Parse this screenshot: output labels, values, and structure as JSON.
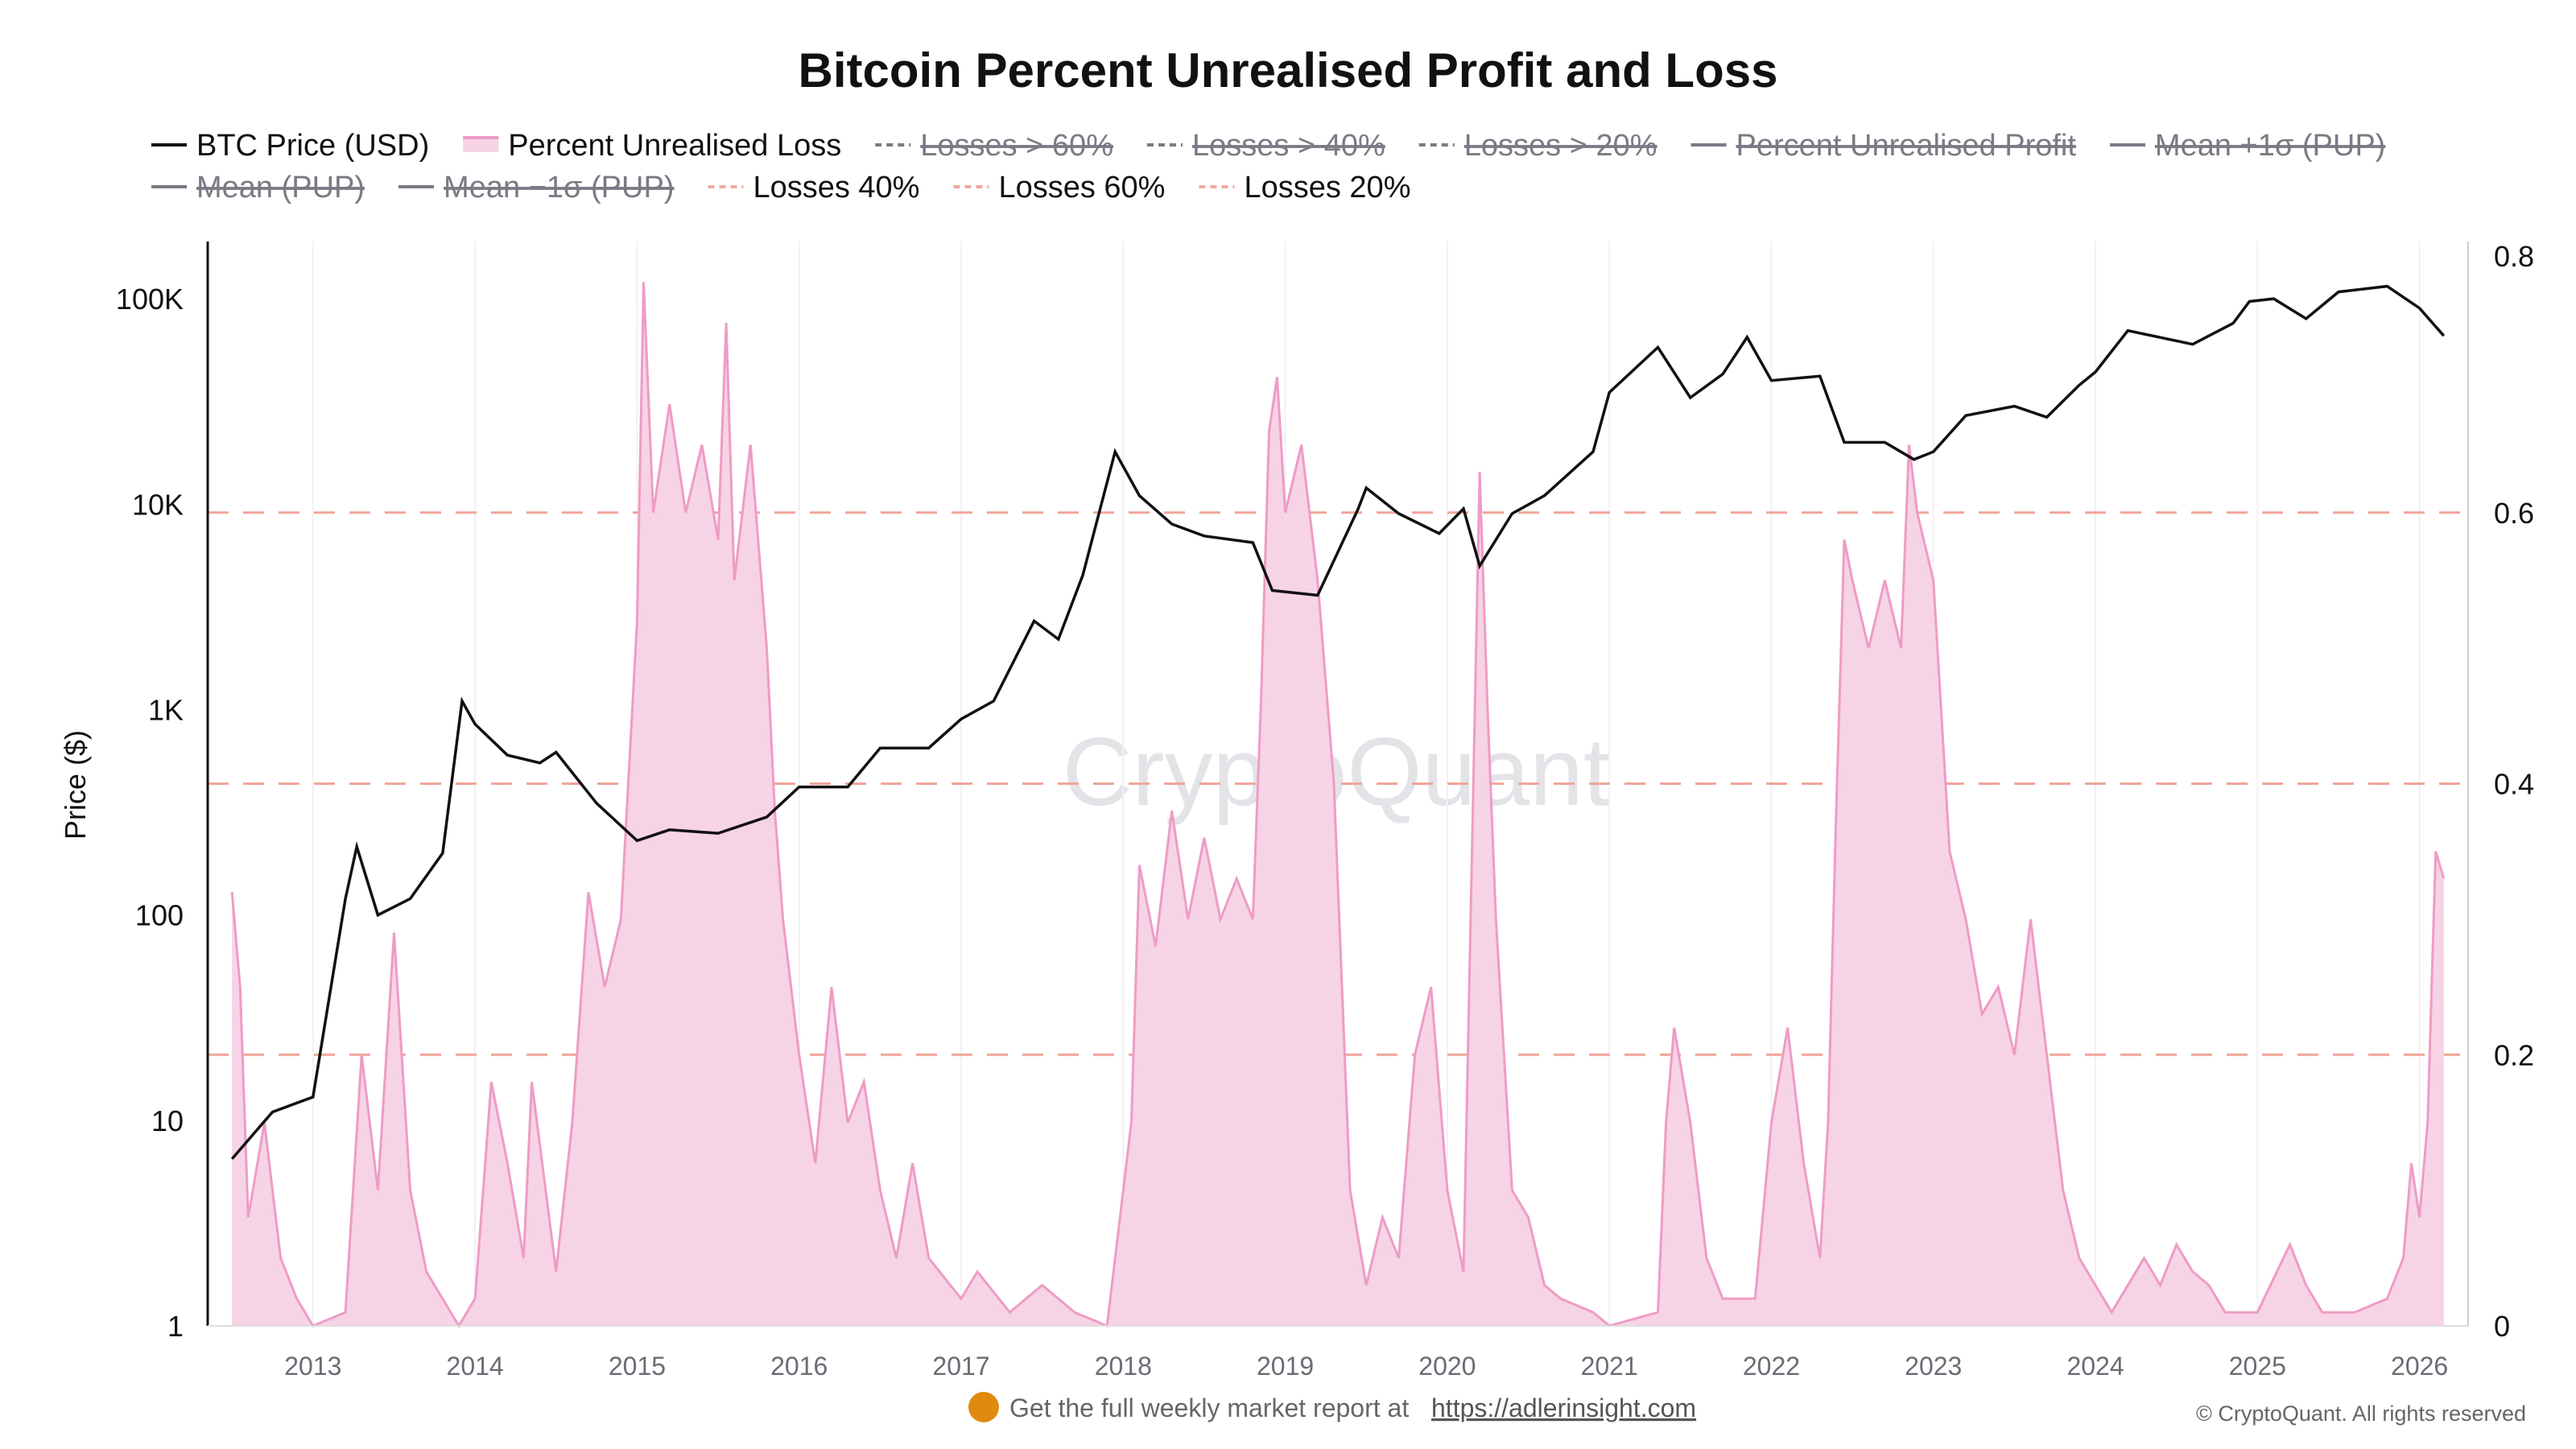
{
  "chart_data": {
    "type": "line",
    "title": "Bitcoin Percent Unrealised Profit and Loss",
    "ylabel": "Price ($)",
    "y_scale": "log",
    "ylim": [
      1,
      190000
    ],
    "y_ticks": [
      {
        "v": 1,
        "label": "1"
      },
      {
        "v": 10,
        "label": "10"
      },
      {
        "v": 100,
        "label": "100"
      },
      {
        "v": 1000,
        "label": "1K"
      },
      {
        "v": 10000,
        "label": "10K"
      },
      {
        "v": 100000,
        "label": "100K"
      }
    ],
    "y2lim": [
      0,
      0.8
    ],
    "y2_ticks": [
      {
        "v": 0,
        "label": "0"
      },
      {
        "v": 0.2,
        "label": "0.2"
      },
      {
        "v": 0.4,
        "label": "0.4"
      },
      {
        "v": 0.6,
        "label": "0.6"
      },
      {
        "v": 0.8,
        "label": "0.8"
      }
    ],
    "xlim": [
      2012.35,
      2026.3
    ],
    "x_ticks": [
      "2013",
      "2014",
      "2015",
      "2016",
      "2017",
      "2018",
      "2019",
      "2020",
      "2021",
      "2022",
      "2023",
      "2024",
      "2025",
      "2026"
    ],
    "grid": true,
    "legend_placement": "top",
    "legend": [
      {
        "label": "BTC Price (USD)",
        "style": "line",
        "color": "#111111",
        "hidden": false
      },
      {
        "label": "Percent Unrealised Loss",
        "style": "area",
        "color": "#f0a0c8",
        "hidden": false
      },
      {
        "label": "Losses > 60%",
        "style": "dash",
        "color": "#7a7a85",
        "hidden": true
      },
      {
        "label": "Losses > 40%",
        "style": "dash",
        "color": "#7a7a85",
        "hidden": true
      },
      {
        "label": "Losses > 20%",
        "style": "dash",
        "color": "#7a7a85",
        "hidden": true
      },
      {
        "label": "Percent Unrealised Profit",
        "style": "line",
        "color": "#7a7a85",
        "hidden": true
      },
      {
        "label": "Mean +1σ (PUP)",
        "style": "line",
        "color": "#7a7a85",
        "hidden": true
      },
      {
        "label": "Mean (PUP)",
        "style": "line",
        "color": "#7a7a85",
        "hidden": true
      },
      {
        "label": "Mean −1σ (PUP)",
        "style": "line",
        "color": "#7a7a85",
        "hidden": true
      },
      {
        "label": "Losses 40%",
        "style": "dash",
        "color": "#f0aaa0",
        "hidden": false
      },
      {
        "label": "Losses 60%",
        "style": "dash",
        "color": "#f0aaa0",
        "hidden": false
      },
      {
        "label": "Losses 20%",
        "style": "dash",
        "color": "#f0aaa0",
        "hidden": false
      }
    ],
    "threshold_lines": [
      0.2,
      0.4,
      0.6
    ],
    "colors": {
      "price": "#111111",
      "loss_fill": "#f7d3e6",
      "loss_line": "#ee9cc6",
      "threshold": "#f0a59a"
    },
    "series": [
      {
        "name": "BTC Price (USD)",
        "axis": "left",
        "points": [
          [
            2012.5,
            6.5
          ],
          [
            2012.75,
            11
          ],
          [
            2013.0,
            13
          ],
          [
            2013.2,
            120
          ],
          [
            2013.27,
            215
          ],
          [
            2013.4,
            100
          ],
          [
            2013.6,
            120
          ],
          [
            2013.8,
            200
          ],
          [
            2013.92,
            1100
          ],
          [
            2014.0,
            850
          ],
          [
            2014.2,
            600
          ],
          [
            2014.4,
            550
          ],
          [
            2014.5,
            620
          ],
          [
            2014.75,
            350
          ],
          [
            2015.0,
            230
          ],
          [
            2015.2,
            260
          ],
          [
            2015.5,
            250
          ],
          [
            2015.8,
            300
          ],
          [
            2016.0,
            420
          ],
          [
            2016.3,
            420
          ],
          [
            2016.5,
            650
          ],
          [
            2016.8,
            650
          ],
          [
            2017.0,
            900
          ],
          [
            2017.2,
            1100
          ],
          [
            2017.45,
            2700
          ],
          [
            2017.6,
            2200
          ],
          [
            2017.75,
            4500
          ],
          [
            2017.95,
            18000
          ],
          [
            2018.1,
            11000
          ],
          [
            2018.3,
            8000
          ],
          [
            2018.5,
            7000
          ],
          [
            2018.8,
            6500
          ],
          [
            2018.92,
            3800
          ],
          [
            2019.2,
            3600
          ],
          [
            2019.45,
            9500
          ],
          [
            2019.5,
            12000
          ],
          [
            2019.7,
            9000
          ],
          [
            2019.95,
            7200
          ],
          [
            2020.1,
            9500
          ],
          [
            2020.2,
            5000
          ],
          [
            2020.4,
            9000
          ],
          [
            2020.6,
            11000
          ],
          [
            2020.9,
            18000
          ],
          [
            2021.0,
            35000
          ],
          [
            2021.3,
            58000
          ],
          [
            2021.5,
            33000
          ],
          [
            2021.7,
            43000
          ],
          [
            2021.85,
            65000
          ],
          [
            2022.0,
            40000
          ],
          [
            2022.3,
            42000
          ],
          [
            2022.45,
            20000
          ],
          [
            2022.7,
            20000
          ],
          [
            2022.88,
            16500
          ],
          [
            2023.0,
            18000
          ],
          [
            2023.2,
            27000
          ],
          [
            2023.5,
            30000
          ],
          [
            2023.7,
            26500
          ],
          [
            2023.9,
            38000
          ],
          [
            2024.0,
            44000
          ],
          [
            2024.2,
            70000
          ],
          [
            2024.6,
            60000
          ],
          [
            2024.85,
            76000
          ],
          [
            2024.95,
            97000
          ],
          [
            2025.1,
            100000
          ],
          [
            2025.3,
            80000
          ],
          [
            2025.5,
            108000
          ],
          [
            2025.8,
            115000
          ],
          [
            2026.0,
            90000
          ],
          [
            2026.15,
            66000
          ]
        ]
      },
      {
        "name": "Percent Unrealised Loss",
        "axis": "right",
        "points": [
          [
            2012.5,
            0.32
          ],
          [
            2012.55,
            0.25
          ],
          [
            2012.6,
            0.08
          ],
          [
            2012.7,
            0.15
          ],
          [
            2012.8,
            0.05
          ],
          [
            2012.9,
            0.02
          ],
          [
            2013.0,
            0
          ],
          [
            2013.2,
            0.01
          ],
          [
            2013.3,
            0.2
          ],
          [
            2013.4,
            0.1
          ],
          [
            2013.5,
            0.29
          ],
          [
            2013.6,
            0.1
          ],
          [
            2013.7,
            0.04
          ],
          [
            2013.9,
            0
          ],
          [
            2014.0,
            0.02
          ],
          [
            2014.1,
            0.18
          ],
          [
            2014.2,
            0.12
          ],
          [
            2014.3,
            0.05
          ],
          [
            2014.35,
            0.18
          ],
          [
            2014.5,
            0.04
          ],
          [
            2014.6,
            0.15
          ],
          [
            2014.7,
            0.32
          ],
          [
            2014.8,
            0.25
          ],
          [
            2014.9,
            0.3
          ],
          [
            2015.0,
            0.52
          ],
          [
            2015.04,
            0.77
          ],
          [
            2015.1,
            0.6
          ],
          [
            2015.2,
            0.68
          ],
          [
            2015.3,
            0.6
          ],
          [
            2015.4,
            0.65
          ],
          [
            2015.5,
            0.58
          ],
          [
            2015.55,
            0.74
          ],
          [
            2015.6,
            0.55
          ],
          [
            2015.7,
            0.65
          ],
          [
            2015.8,
            0.5
          ],
          [
            2015.85,
            0.38
          ],
          [
            2015.9,
            0.3
          ],
          [
            2016.0,
            0.2
          ],
          [
            2016.1,
            0.12
          ],
          [
            2016.2,
            0.25
          ],
          [
            2016.3,
            0.15
          ],
          [
            2016.4,
            0.18
          ],
          [
            2016.5,
            0.1
          ],
          [
            2016.6,
            0.05
          ],
          [
            2016.7,
            0.12
          ],
          [
            2016.8,
            0.05
          ],
          [
            2017.0,
            0.02
          ],
          [
            2017.1,
            0.04
          ],
          [
            2017.3,
            0.01
          ],
          [
            2017.5,
            0.03
          ],
          [
            2017.7,
            0.01
          ],
          [
            2017.9,
            0
          ],
          [
            2018.05,
            0.15
          ],
          [
            2018.1,
            0.34
          ],
          [
            2018.2,
            0.28
          ],
          [
            2018.3,
            0.38
          ],
          [
            2018.4,
            0.3
          ],
          [
            2018.5,
            0.36
          ],
          [
            2018.6,
            0.3
          ],
          [
            2018.7,
            0.33
          ],
          [
            2018.8,
            0.3
          ],
          [
            2018.85,
            0.46
          ],
          [
            2018.9,
            0.66
          ],
          [
            2018.95,
            0.7
          ],
          [
            2019.0,
            0.6
          ],
          [
            2019.1,
            0.65
          ],
          [
            2019.2,
            0.55
          ],
          [
            2019.3,
            0.4
          ],
          [
            2019.4,
            0.1
          ],
          [
            2019.5,
            0.03
          ],
          [
            2019.6,
            0.08
          ],
          [
            2019.7,
            0.05
          ],
          [
            2019.8,
            0.2
          ],
          [
            2019.9,
            0.25
          ],
          [
            2020.0,
            0.1
          ],
          [
            2020.1,
            0.04
          ],
          [
            2020.2,
            0.63
          ],
          [
            2020.25,
            0.45
          ],
          [
            2020.3,
            0.3
          ],
          [
            2020.4,
            0.1
          ],
          [
            2020.5,
            0.08
          ],
          [
            2020.6,
            0.03
          ],
          [
            2020.7,
            0.02
          ],
          [
            2020.9,
            0.01
          ],
          [
            2021.0,
            0
          ],
          [
            2021.3,
            0.01
          ],
          [
            2021.35,
            0.15
          ],
          [
            2021.4,
            0.22
          ],
          [
            2021.5,
            0.15
          ],
          [
            2021.6,
            0.05
          ],
          [
            2021.7,
            0.02
          ],
          [
            2021.9,
            0.02
          ],
          [
            2022.0,
            0.15
          ],
          [
            2022.1,
            0.22
          ],
          [
            2022.2,
            0.12
          ],
          [
            2022.3,
            0.05
          ],
          [
            2022.35,
            0.15
          ],
          [
            2022.4,
            0.38
          ],
          [
            2022.45,
            0.58
          ],
          [
            2022.5,
            0.55
          ],
          [
            2022.6,
            0.5
          ],
          [
            2022.7,
            0.55
          ],
          [
            2022.8,
            0.5
          ],
          [
            2022.85,
            0.65
          ],
          [
            2022.9,
            0.6
          ],
          [
            2023.0,
            0.55
          ],
          [
            2023.05,
            0.45
          ],
          [
            2023.1,
            0.35
          ],
          [
            2023.2,
            0.3
          ],
          [
            2023.3,
            0.23
          ],
          [
            2023.4,
            0.25
          ],
          [
            2023.5,
            0.2
          ],
          [
            2023.6,
            0.3
          ],
          [
            2023.7,
            0.2
          ],
          [
            2023.8,
            0.1
          ],
          [
            2023.9,
            0.05
          ],
          [
            2024.0,
            0.03
          ],
          [
            2024.1,
            0.01
          ],
          [
            2024.3,
            0.05
          ],
          [
            2024.4,
            0.03
          ],
          [
            2024.5,
            0.06
          ],
          [
            2024.6,
            0.04
          ],
          [
            2024.7,
            0.03
          ],
          [
            2024.8,
            0.01
          ],
          [
            2025.0,
            0.01
          ],
          [
            2025.2,
            0.06
          ],
          [
            2025.3,
            0.03
          ],
          [
            2025.4,
            0.01
          ],
          [
            2025.6,
            0.01
          ],
          [
            2025.8,
            0.02
          ],
          [
            2025.9,
            0.05
          ],
          [
            2025.95,
            0.12
          ],
          [
            2026.0,
            0.08
          ],
          [
            2026.05,
            0.15
          ],
          [
            2026.1,
            0.35
          ],
          [
            2026.15,
            0.33
          ]
        ]
      }
    ]
  },
  "watermark": "CryptoQuant",
  "footer": {
    "promo_text": "Get the full weekly market report at",
    "promo_link": "https://adlerinsight.com",
    "copyright": "© CryptoQuant. All rights reserved"
  }
}
